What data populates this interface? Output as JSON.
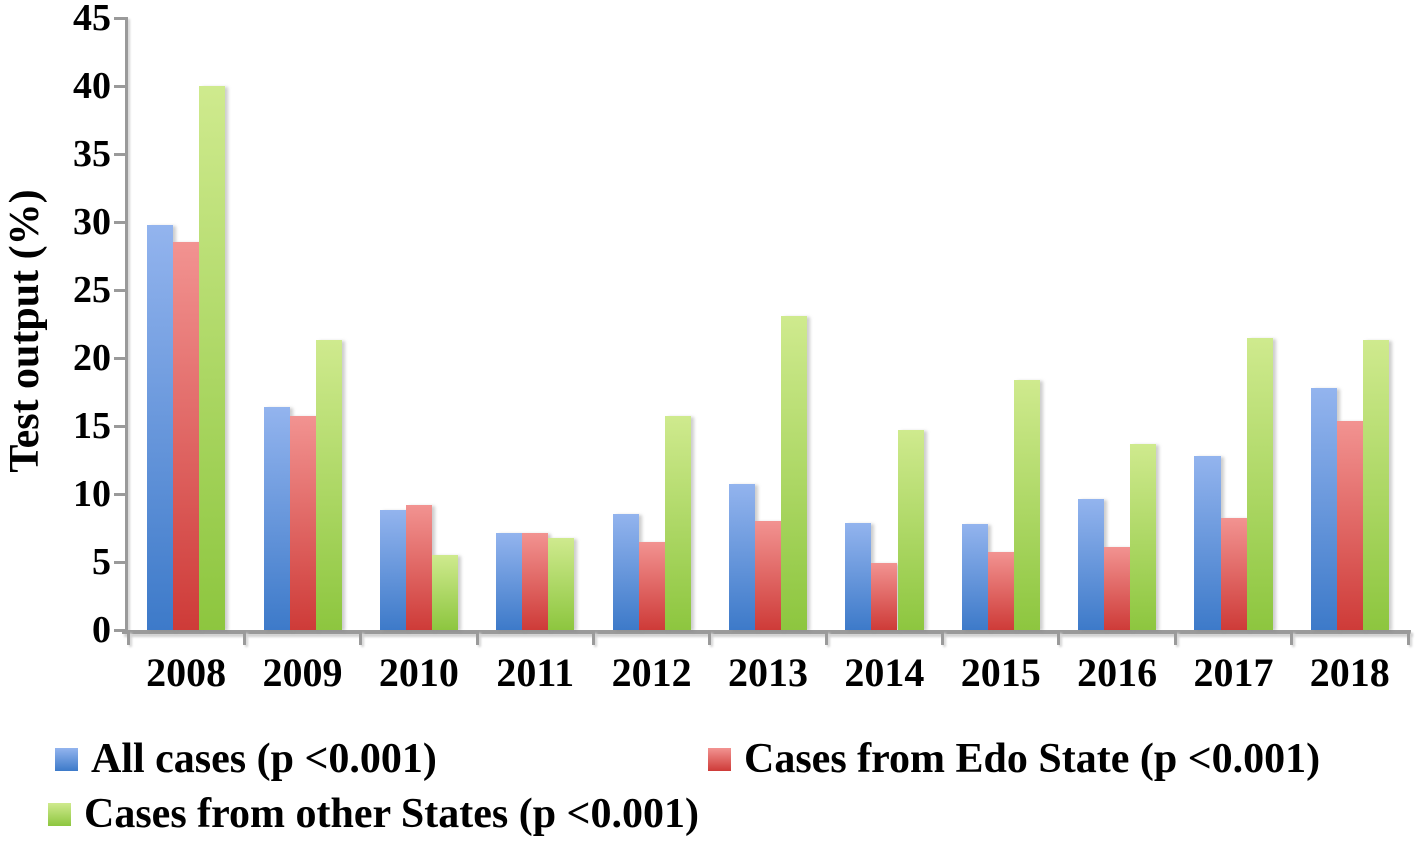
{
  "figure": {
    "background": "#ffffff"
  },
  "axis": {
    "color": "#9a9a9a",
    "y_tick_labels": [
      "0",
      "5",
      "10",
      "15",
      "20",
      "25",
      "30",
      "35",
      "40",
      "45"
    ]
  },
  "chart_data": {
    "type": "bar",
    "title": "",
    "xlabel": "",
    "ylabel": "Test output (%)",
    "ylim": [
      0,
      45
    ],
    "ytick_step": 5,
    "grid": false,
    "legend_position": "bottom",
    "categories": [
      "2008",
      "2009",
      "2010",
      "2011",
      "2012",
      "2013",
      "2014",
      "2015",
      "2016",
      "2017",
      "2018"
    ],
    "series": [
      {
        "name": "All cases (p <0.001)",
        "color_top": "#93b4ee",
        "color_bottom": "#3d7ac9",
        "values": [
          29.8,
          16.4,
          8.8,
          7.1,
          8.5,
          10.7,
          7.9,
          7.8,
          9.6,
          12.8,
          17.8
        ]
      },
      {
        "name": "Cases from Edo State (p <0.001)",
        "color_top": "#f29391",
        "color_bottom": "#ce3b38",
        "values": [
          28.5,
          15.7,
          9.2,
          7.1,
          6.5,
          8.0,
          4.9,
          5.7,
          6.1,
          8.2,
          15.4
        ]
      },
      {
        "name": "Cases from other States (p <0.001)",
        "color_top": "#cfea8e",
        "color_bottom": "#8dc63f",
        "values": [
          40.0,
          21.3,
          5.5,
          6.8,
          15.7,
          23.1,
          14.7,
          18.4,
          13.7,
          21.5,
          21.3
        ]
      }
    ]
  }
}
